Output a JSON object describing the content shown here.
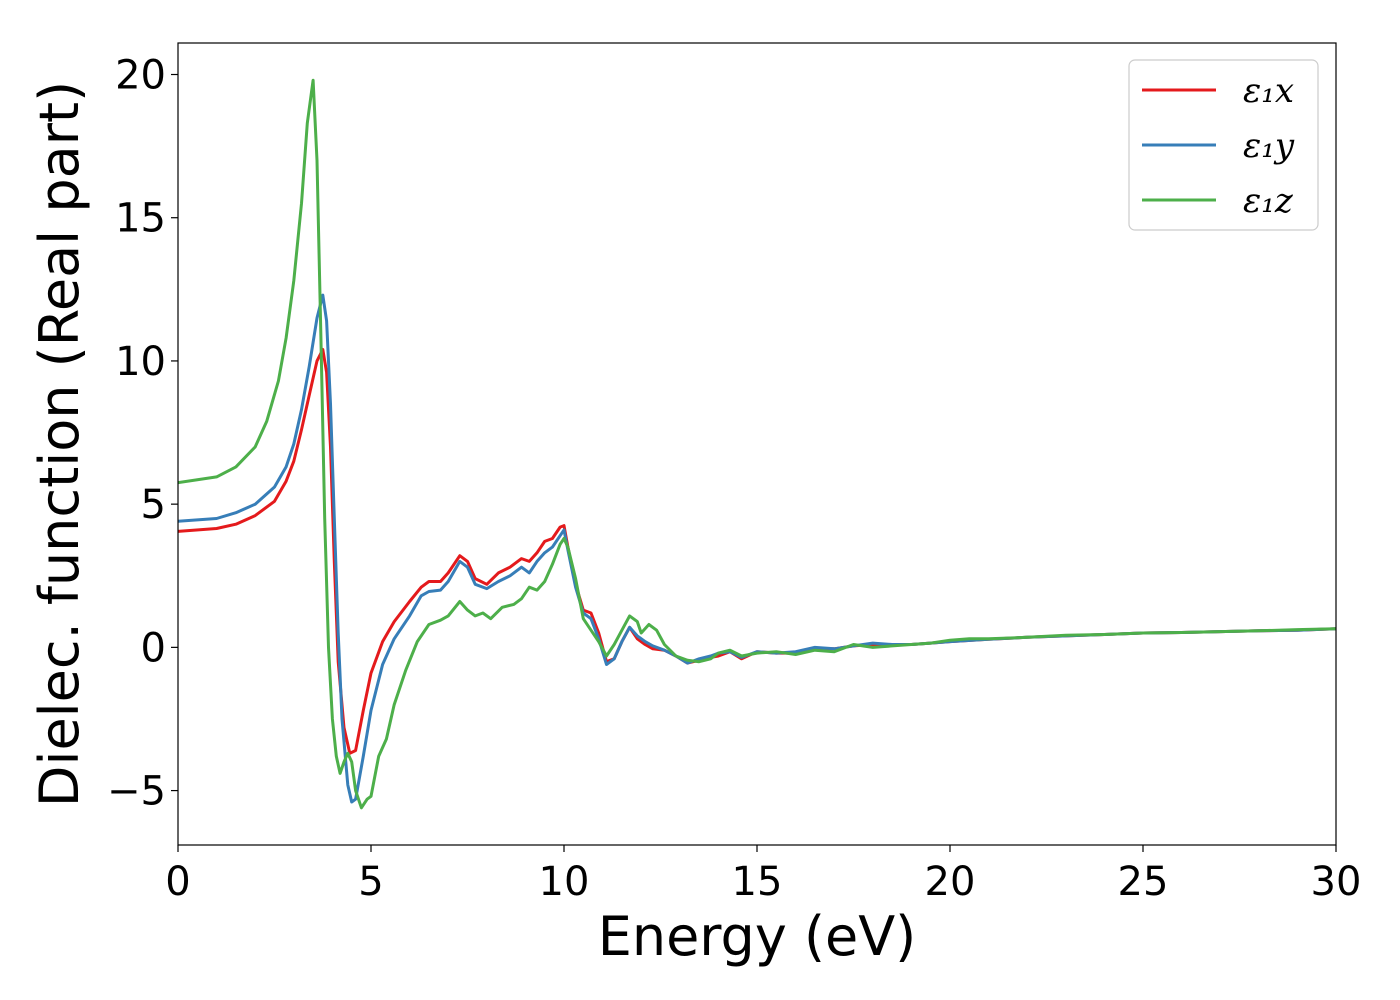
{
  "chart_data": {
    "type": "line",
    "title": "",
    "xlabel": "Energy (eV)",
    "ylabel": "Dielec. function (Real part)",
    "xlim": [
      0,
      30
    ],
    "ylim": [
      -6.9,
      21.1
    ],
    "xticks": [
      0,
      5,
      10,
      15,
      20,
      25,
      30
    ],
    "xtick_labels": [
      "0",
      "5",
      "10",
      "15",
      "20",
      "25",
      "30"
    ],
    "yticks": [
      -5,
      0,
      5,
      10,
      15,
      20
    ],
    "ytick_labels": [
      "−5",
      "0",
      "5",
      "10",
      "15",
      "20"
    ],
    "grid": false,
    "legend_position": "top-right",
    "series": [
      {
        "name": "ε₁x",
        "color": "#e41a1c",
        "points": [
          [
            0,
            4.05
          ],
          [
            1,
            4.15
          ],
          [
            1.5,
            4.3
          ],
          [
            2,
            4.6
          ],
          [
            2.5,
            5.1
          ],
          [
            2.8,
            5.8
          ],
          [
            3.0,
            6.5
          ],
          [
            3.2,
            7.6
          ],
          [
            3.4,
            8.8
          ],
          [
            3.6,
            10.0
          ],
          [
            3.75,
            10.4
          ],
          [
            3.85,
            9.6
          ],
          [
            3.95,
            7.0
          ],
          [
            4.05,
            3.0
          ],
          [
            4.15,
            -0.5
          ],
          [
            4.3,
            -2.8
          ],
          [
            4.45,
            -3.7
          ],
          [
            4.6,
            -3.6
          ],
          [
            4.8,
            -2.2
          ],
          [
            5,
            -0.9
          ],
          [
            5.3,
            0.2
          ],
          [
            5.6,
            0.9
          ],
          [
            6,
            1.6
          ],
          [
            6.3,
            2.1
          ],
          [
            6.5,
            2.3
          ],
          [
            6.8,
            2.3
          ],
          [
            7.0,
            2.6
          ],
          [
            7.3,
            3.2
          ],
          [
            7.5,
            3.0
          ],
          [
            7.7,
            2.4
          ],
          [
            8.0,
            2.2
          ],
          [
            8.3,
            2.6
          ],
          [
            8.6,
            2.8
          ],
          [
            8.9,
            3.1
          ],
          [
            9.1,
            3.0
          ],
          [
            9.3,
            3.3
          ],
          [
            9.5,
            3.7
          ],
          [
            9.7,
            3.8
          ],
          [
            9.9,
            4.2
          ],
          [
            10.0,
            4.25
          ],
          [
            10.1,
            3.5
          ],
          [
            10.3,
            2.2
          ],
          [
            10.5,
            1.3
          ],
          [
            10.7,
            1.2
          ],
          [
            10.9,
            0.5
          ],
          [
            11.1,
            -0.5
          ],
          [
            11.3,
            -0.4
          ],
          [
            11.5,
            0.2
          ],
          [
            11.7,
            0.7
          ],
          [
            11.9,
            0.3
          ],
          [
            12.1,
            0.1
          ],
          [
            12.3,
            -0.05
          ],
          [
            12.6,
            -0.1
          ],
          [
            12.9,
            -0.3
          ],
          [
            13.2,
            -0.55
          ],
          [
            13.5,
            -0.45
          ],
          [
            13.8,
            -0.35
          ],
          [
            14.0,
            -0.3
          ],
          [
            14.3,
            -0.15
          ],
          [
            14.6,
            -0.4
          ],
          [
            15.0,
            -0.15
          ],
          [
            15.5,
            -0.2
          ],
          [
            16.0,
            -0.2
          ],
          [
            16.5,
            -0.05
          ],
          [
            17.0,
            -0.05
          ],
          [
            17.5,
            0.05
          ],
          [
            18.0,
            0.1
          ],
          [
            18.5,
            0.1
          ],
          [
            19.0,
            0.1
          ],
          [
            19.5,
            0.15
          ],
          [
            20,
            0.2
          ],
          [
            21,
            0.28
          ],
          [
            22,
            0.35
          ],
          [
            23,
            0.4
          ],
          [
            24,
            0.45
          ],
          [
            25,
            0.5
          ],
          [
            26,
            0.52
          ],
          [
            27,
            0.55
          ],
          [
            28,
            0.58
          ],
          [
            29,
            0.6
          ],
          [
            30,
            0.65
          ]
        ]
      },
      {
        "name": "ε₁y",
        "color": "#377eb8",
        "points": [
          [
            0,
            4.4
          ],
          [
            1,
            4.5
          ],
          [
            1.5,
            4.7
          ],
          [
            2,
            5.0
          ],
          [
            2.5,
            5.6
          ],
          [
            2.8,
            6.3
          ],
          [
            3.0,
            7.1
          ],
          [
            3.2,
            8.3
          ],
          [
            3.4,
            9.8
          ],
          [
            3.6,
            11.5
          ],
          [
            3.75,
            12.3
          ],
          [
            3.85,
            11.4
          ],
          [
            3.95,
            8.5
          ],
          [
            4.05,
            4.5
          ],
          [
            4.15,
            0.5
          ],
          [
            4.25,
            -2.5
          ],
          [
            4.4,
            -4.8
          ],
          [
            4.5,
            -5.4
          ],
          [
            4.6,
            -5.3
          ],
          [
            4.8,
            -3.8
          ],
          [
            5,
            -2.2
          ],
          [
            5.3,
            -0.6
          ],
          [
            5.6,
            0.3
          ],
          [
            6,
            1.1
          ],
          [
            6.3,
            1.8
          ],
          [
            6.5,
            1.95
          ],
          [
            6.8,
            2.0
          ],
          [
            7.0,
            2.3
          ],
          [
            7.3,
            3.0
          ],
          [
            7.5,
            2.8
          ],
          [
            7.7,
            2.2
          ],
          [
            8.0,
            2.05
          ],
          [
            8.3,
            2.3
          ],
          [
            8.6,
            2.5
          ],
          [
            8.9,
            2.8
          ],
          [
            9.1,
            2.6
          ],
          [
            9.3,
            3.0
          ],
          [
            9.5,
            3.3
          ],
          [
            9.7,
            3.5
          ],
          [
            9.9,
            3.9
          ],
          [
            10.0,
            4.1
          ],
          [
            10.1,
            3.4
          ],
          [
            10.3,
            2.1
          ],
          [
            10.5,
            1.2
          ],
          [
            10.7,
            1.0
          ],
          [
            10.9,
            0.3
          ],
          [
            11.1,
            -0.6
          ],
          [
            11.3,
            -0.4
          ],
          [
            11.5,
            0.2
          ],
          [
            11.7,
            0.7
          ],
          [
            11.9,
            0.4
          ],
          [
            12.1,
            0.2
          ],
          [
            12.3,
            0.05
          ],
          [
            12.6,
            -0.1
          ],
          [
            12.9,
            -0.3
          ],
          [
            13.2,
            -0.55
          ],
          [
            13.5,
            -0.4
          ],
          [
            13.8,
            -0.3
          ],
          [
            14.0,
            -0.2
          ],
          [
            14.3,
            -0.15
          ],
          [
            14.6,
            -0.35
          ],
          [
            15.0,
            -0.15
          ],
          [
            15.5,
            -0.2
          ],
          [
            16.0,
            -0.15
          ],
          [
            16.5,
            0.0
          ],
          [
            17.0,
            -0.05
          ],
          [
            17.5,
            0.05
          ],
          [
            18.0,
            0.15
          ],
          [
            18.5,
            0.1
          ],
          [
            19.0,
            0.1
          ],
          [
            19.5,
            0.15
          ],
          [
            20,
            0.2
          ],
          [
            21,
            0.28
          ],
          [
            22,
            0.35
          ],
          [
            23,
            0.4
          ],
          [
            24,
            0.45
          ],
          [
            25,
            0.5
          ],
          [
            26,
            0.52
          ],
          [
            27,
            0.55
          ],
          [
            28,
            0.58
          ],
          [
            29,
            0.6
          ],
          [
            30,
            0.65
          ]
        ]
      },
      {
        "name": "ε₁z",
        "color": "#4daf4a",
        "points": [
          [
            0,
            5.75
          ],
          [
            1,
            5.95
          ],
          [
            1.5,
            6.3
          ],
          [
            2,
            7.0
          ],
          [
            2.3,
            7.9
          ],
          [
            2.6,
            9.3
          ],
          [
            2.8,
            10.8
          ],
          [
            3.0,
            12.8
          ],
          [
            3.2,
            15.5
          ],
          [
            3.35,
            18.3
          ],
          [
            3.5,
            19.8
          ],
          [
            3.6,
            17.0
          ],
          [
            3.7,
            11.0
          ],
          [
            3.8,
            4.5
          ],
          [
            3.9,
            0.0
          ],
          [
            4.0,
            -2.5
          ],
          [
            4.1,
            -3.8
          ],
          [
            4.2,
            -4.4
          ],
          [
            4.3,
            -4.0
          ],
          [
            4.4,
            -3.7
          ],
          [
            4.5,
            -4.0
          ],
          [
            4.6,
            -5.0
          ],
          [
            4.75,
            -5.6
          ],
          [
            4.9,
            -5.3
          ],
          [
            5.0,
            -5.2
          ],
          [
            5.2,
            -3.8
          ],
          [
            5.4,
            -3.2
          ],
          [
            5.6,
            -2.0
          ],
          [
            5.9,
            -0.8
          ],
          [
            6.2,
            0.2
          ],
          [
            6.5,
            0.8
          ],
          [
            6.8,
            0.95
          ],
          [
            7.0,
            1.1
          ],
          [
            7.3,
            1.6
          ],
          [
            7.5,
            1.3
          ],
          [
            7.7,
            1.1
          ],
          [
            7.9,
            1.2
          ],
          [
            8.1,
            1.0
          ],
          [
            8.4,
            1.4
          ],
          [
            8.7,
            1.5
          ],
          [
            8.9,
            1.7
          ],
          [
            9.1,
            2.1
          ],
          [
            9.3,
            2.0
          ],
          [
            9.5,
            2.3
          ],
          [
            9.7,
            2.9
          ],
          [
            9.9,
            3.6
          ],
          [
            10.0,
            3.8
          ],
          [
            10.1,
            3.5
          ],
          [
            10.3,
            2.4
          ],
          [
            10.5,
            1.0
          ],
          [
            10.7,
            0.6
          ],
          [
            10.9,
            0.2
          ],
          [
            11.1,
            -0.3
          ],
          [
            11.3,
            0.1
          ],
          [
            11.5,
            0.6
          ],
          [
            11.7,
            1.1
          ],
          [
            11.9,
            0.9
          ],
          [
            12.0,
            0.5
          ],
          [
            12.2,
            0.8
          ],
          [
            12.4,
            0.6
          ],
          [
            12.6,
            0.1
          ],
          [
            12.9,
            -0.3
          ],
          [
            13.2,
            -0.45
          ],
          [
            13.5,
            -0.5
          ],
          [
            13.8,
            -0.4
          ],
          [
            14.0,
            -0.2
          ],
          [
            14.3,
            -0.1
          ],
          [
            14.6,
            -0.3
          ],
          [
            15.0,
            -0.2
          ],
          [
            15.5,
            -0.15
          ],
          [
            16.0,
            -0.25
          ],
          [
            16.5,
            -0.1
          ],
          [
            17.0,
            -0.15
          ],
          [
            17.5,
            0.1
          ],
          [
            18.0,
            0.0
          ],
          [
            18.5,
            0.05
          ],
          [
            19.0,
            0.1
          ],
          [
            19.5,
            0.15
          ],
          [
            20,
            0.25
          ],
          [
            20.5,
            0.3
          ],
          [
            21,
            0.3
          ],
          [
            22,
            0.35
          ],
          [
            23,
            0.42
          ],
          [
            24,
            0.45
          ],
          [
            25,
            0.5
          ],
          [
            26,
            0.52
          ],
          [
            27,
            0.55
          ],
          [
            28,
            0.58
          ],
          [
            29,
            0.62
          ],
          [
            30,
            0.65
          ]
        ]
      }
    ]
  }
}
